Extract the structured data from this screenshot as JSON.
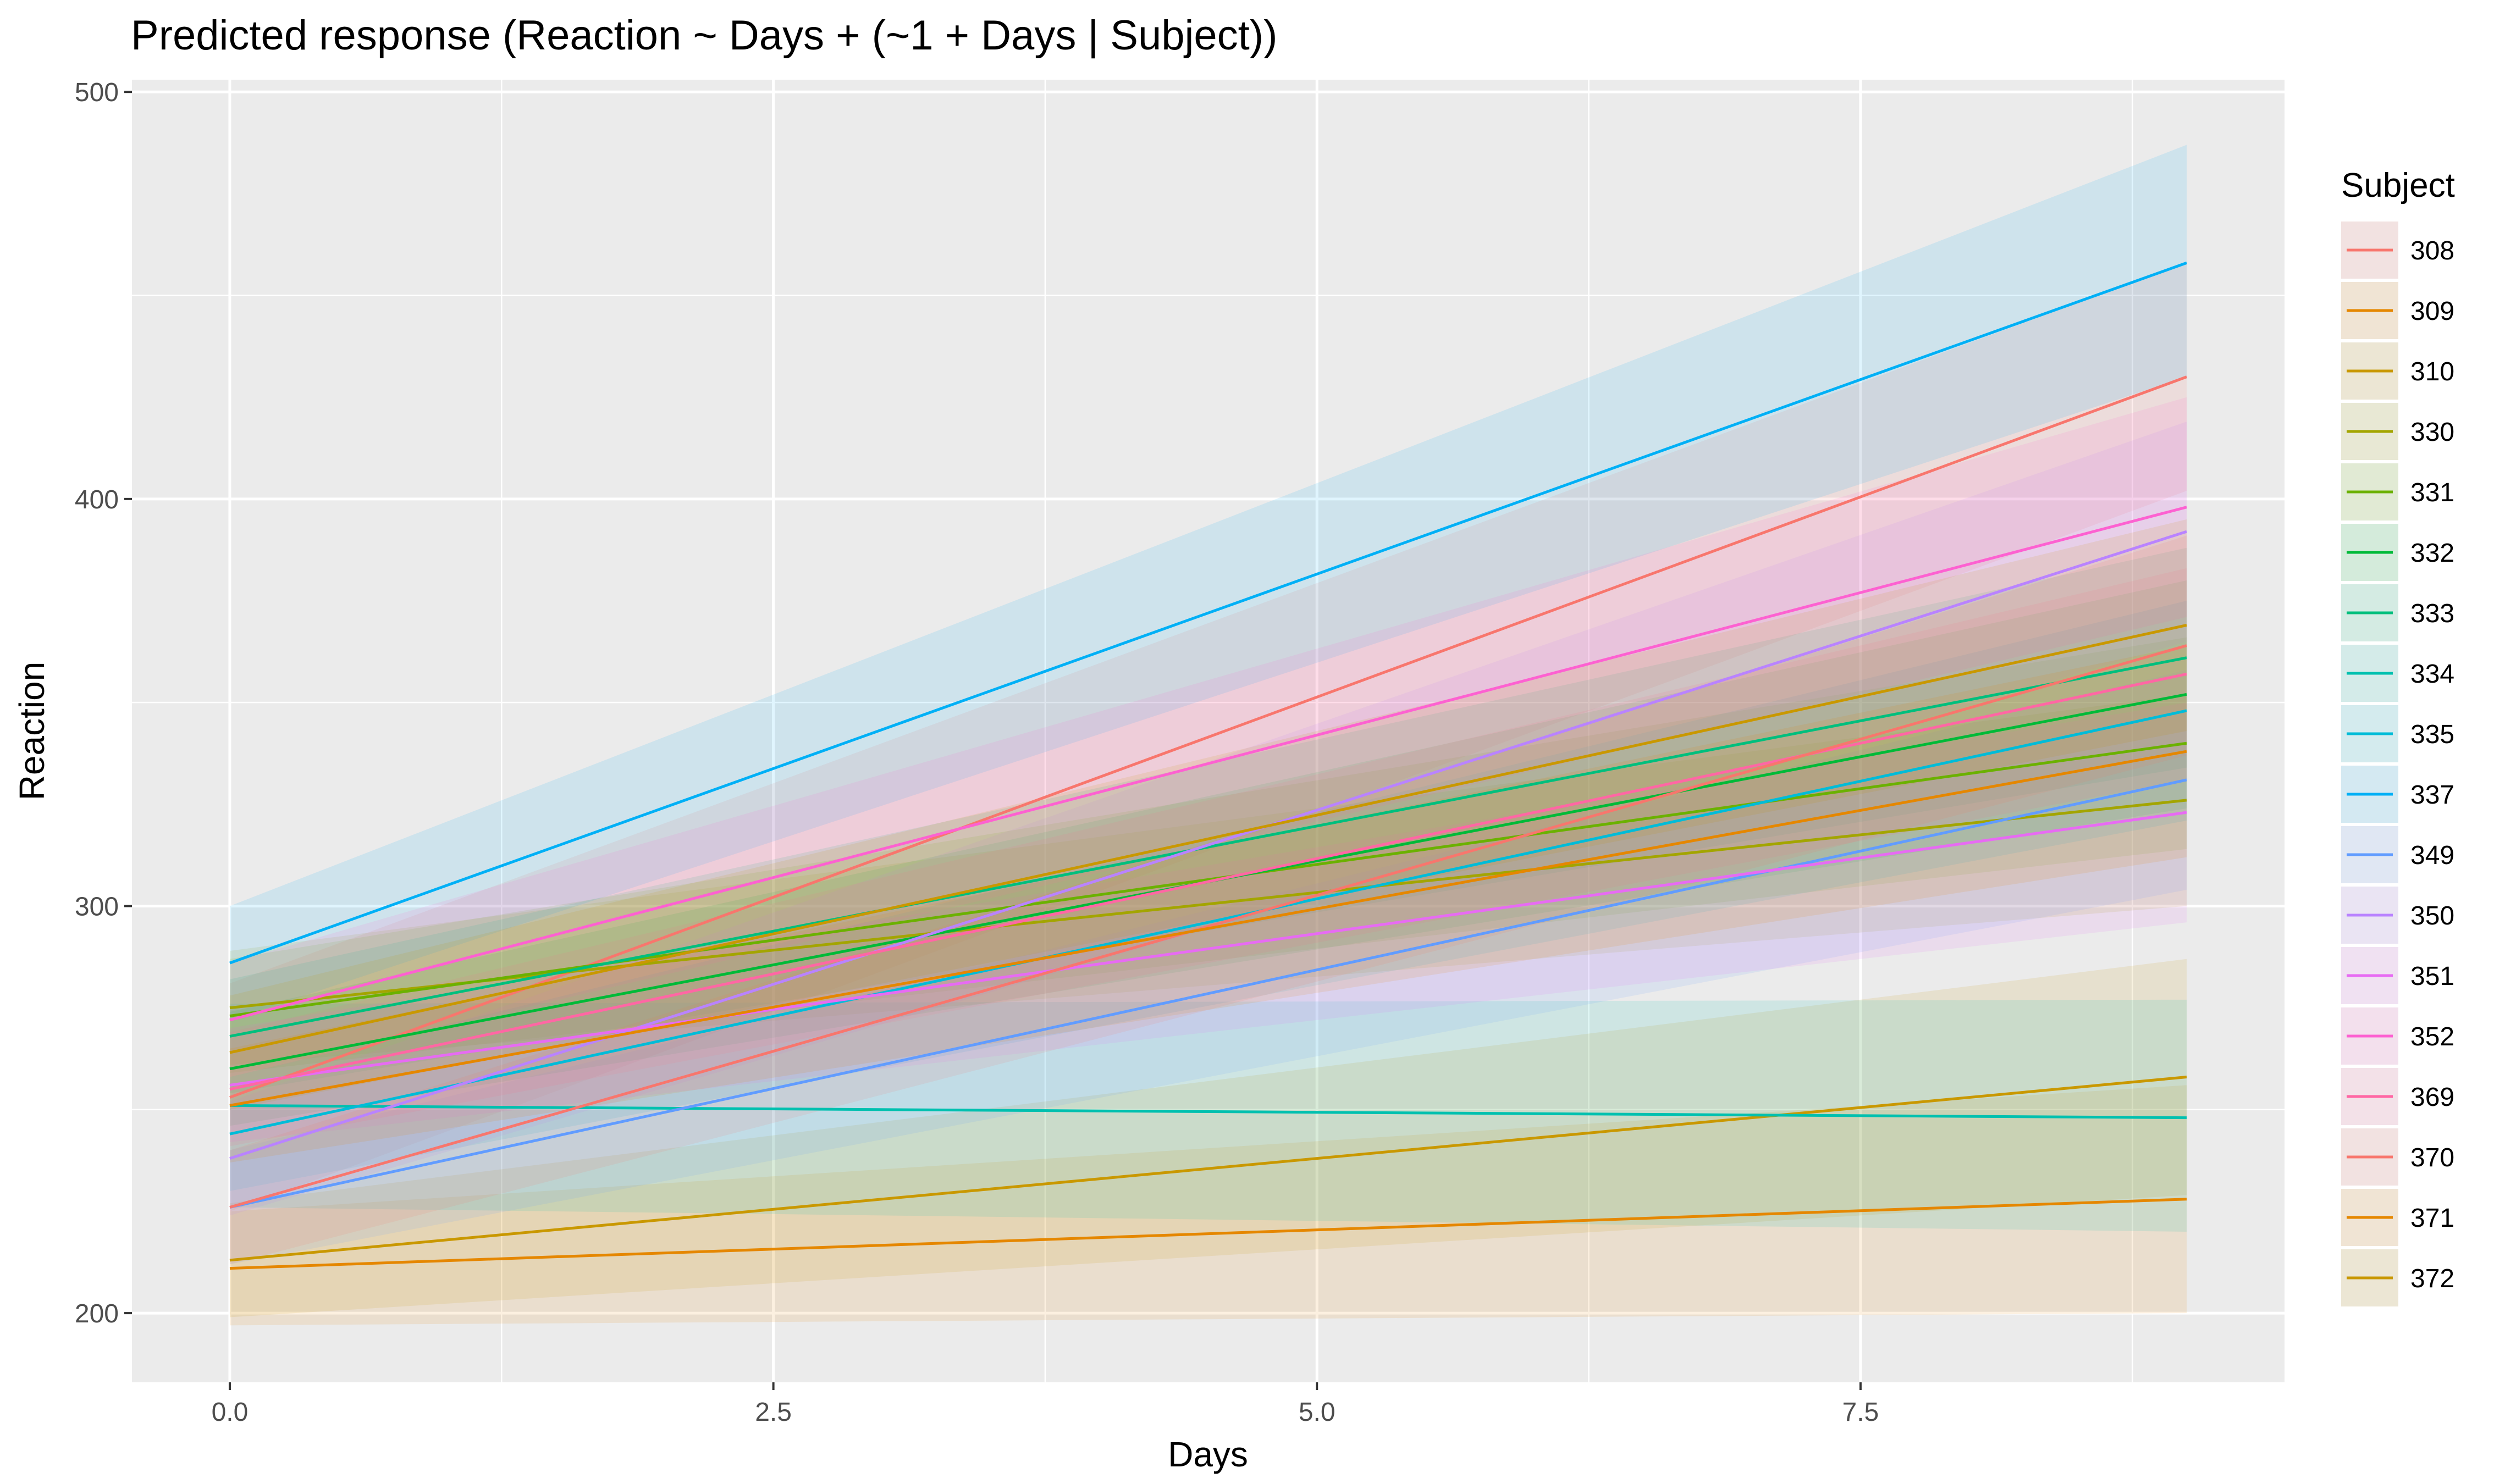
{
  "chart_data": {
    "type": "line",
    "title": "Predicted response (Reaction ~ Days + (~1 + Days | Subject))",
    "xlabel": "Days",
    "ylabel": "Reaction",
    "xlim": [
      -0.45,
      9.45
    ],
    "ylim": [
      183,
      503
    ],
    "x_ticks": [
      0,
      2.5,
      5,
      7.5
    ],
    "x_tick_labels": [
      "0.0",
      "2.5",
      "5.0",
      "7.5"
    ],
    "y_ticks": [
      200,
      300,
      400,
      500
    ],
    "y_tick_labels": [
      "200",
      "300",
      "400",
      "500"
    ],
    "grid": true,
    "confidence_bands": true,
    "legend_title": "Subject",
    "legend_position": "right",
    "x": [
      0,
      9
    ],
    "series": [
      {
        "name": "308",
        "color": "#F8766D",
        "values": [
          253,
          430
        ],
        "band_lower": [
          225,
          402
        ],
        "band_upper": [
          281,
          458
        ]
      },
      {
        "name": "309",
        "color": "#E58700",
        "values": [
          211,
          228
        ],
        "band_lower": [
          197,
          200
        ],
        "band_upper": [
          225,
          256
        ]
      },
      {
        "name": "310",
        "color": "#C99800",
        "values": [
          213,
          258
        ],
        "band_lower": [
          199,
          229
        ],
        "band_upper": [
          227,
          287
        ]
      },
      {
        "name": "330",
        "color": "#A3A500",
        "values": [
          275,
          326
        ],
        "band_lower": [
          261,
          300
        ],
        "band_upper": [
          289,
          352
        ]
      },
      {
        "name": "331",
        "color": "#6BB100",
        "values": [
          273,
          340
        ],
        "band_lower": [
          259,
          314
        ],
        "band_upper": [
          287,
          366
        ]
      },
      {
        "name": "332",
        "color": "#00BA38",
        "values": [
          260,
          352
        ],
        "band_lower": [
          246,
          324
        ],
        "band_upper": [
          274,
          380
        ]
      },
      {
        "name": "333",
        "color": "#00BF7D",
        "values": [
          268,
          361
        ],
        "band_lower": [
          254,
          334
        ],
        "band_upper": [
          282,
          388
        ]
      },
      {
        "name": "334",
        "color": "#00C0AF",
        "values": [
          251,
          248
        ],
        "band_lower": [
          226,
          220
        ],
        "band_upper": [
          276,
          277
        ]
      },
      {
        "name": "335",
        "color": "#00BCD8",
        "values": [
          244,
          348
        ],
        "band_lower": [
          230,
          321
        ],
        "band_upper": [
          258,
          375
        ]
      },
      {
        "name": "337",
        "color": "#00B0F6",
        "values": [
          286,
          458
        ],
        "band_lower": [
          272,
          430
        ],
        "band_upper": [
          300,
          487
        ]
      },
      {
        "name": "349",
        "color": "#619CFF",
        "values": [
          226,
          331
        ],
        "band_lower": [
          212,
          304
        ],
        "band_upper": [
          240,
          358
        ]
      },
      {
        "name": "350",
        "color": "#B983FF",
        "values": [
          238,
          392
        ],
        "band_lower": [
          224,
          365
        ],
        "band_upper": [
          252,
          419
        ]
      },
      {
        "name": "351",
        "color": "#E76BF3",
        "values": [
          256,
          323
        ],
        "band_lower": [
          242,
          296
        ],
        "band_upper": [
          270,
          350
        ]
      },
      {
        "name": "352",
        "color": "#FD61D1",
        "values": [
          272,
          398
        ],
        "band_lower": [
          258,
          371
        ],
        "band_upper": [
          286,
          425
        ]
      },
      {
        "name": "369",
        "color": "#FF67A4",
        "values": [
          255,
          357
        ],
        "band_lower": [
          241,
          331
        ],
        "band_upper": [
          269,
          383
        ]
      },
      {
        "name": "370",
        "color": "#F8766D",
        "values": [
          226,
          364
        ],
        "band_lower": [
          212,
          337
        ],
        "band_upper": [
          240,
          391
        ]
      },
      {
        "name": "371",
        "color": "#E58700",
        "values": [
          251,
          338
        ],
        "band_lower": [
          237,
          312
        ],
        "band_upper": [
          265,
          364
        ]
      },
      {
        "name": "372",
        "color": "#C99800",
        "values": [
          264,
          369
        ],
        "band_lower": [
          250,
          343
        ],
        "band_upper": [
          278,
          395
        ]
      }
    ]
  }
}
